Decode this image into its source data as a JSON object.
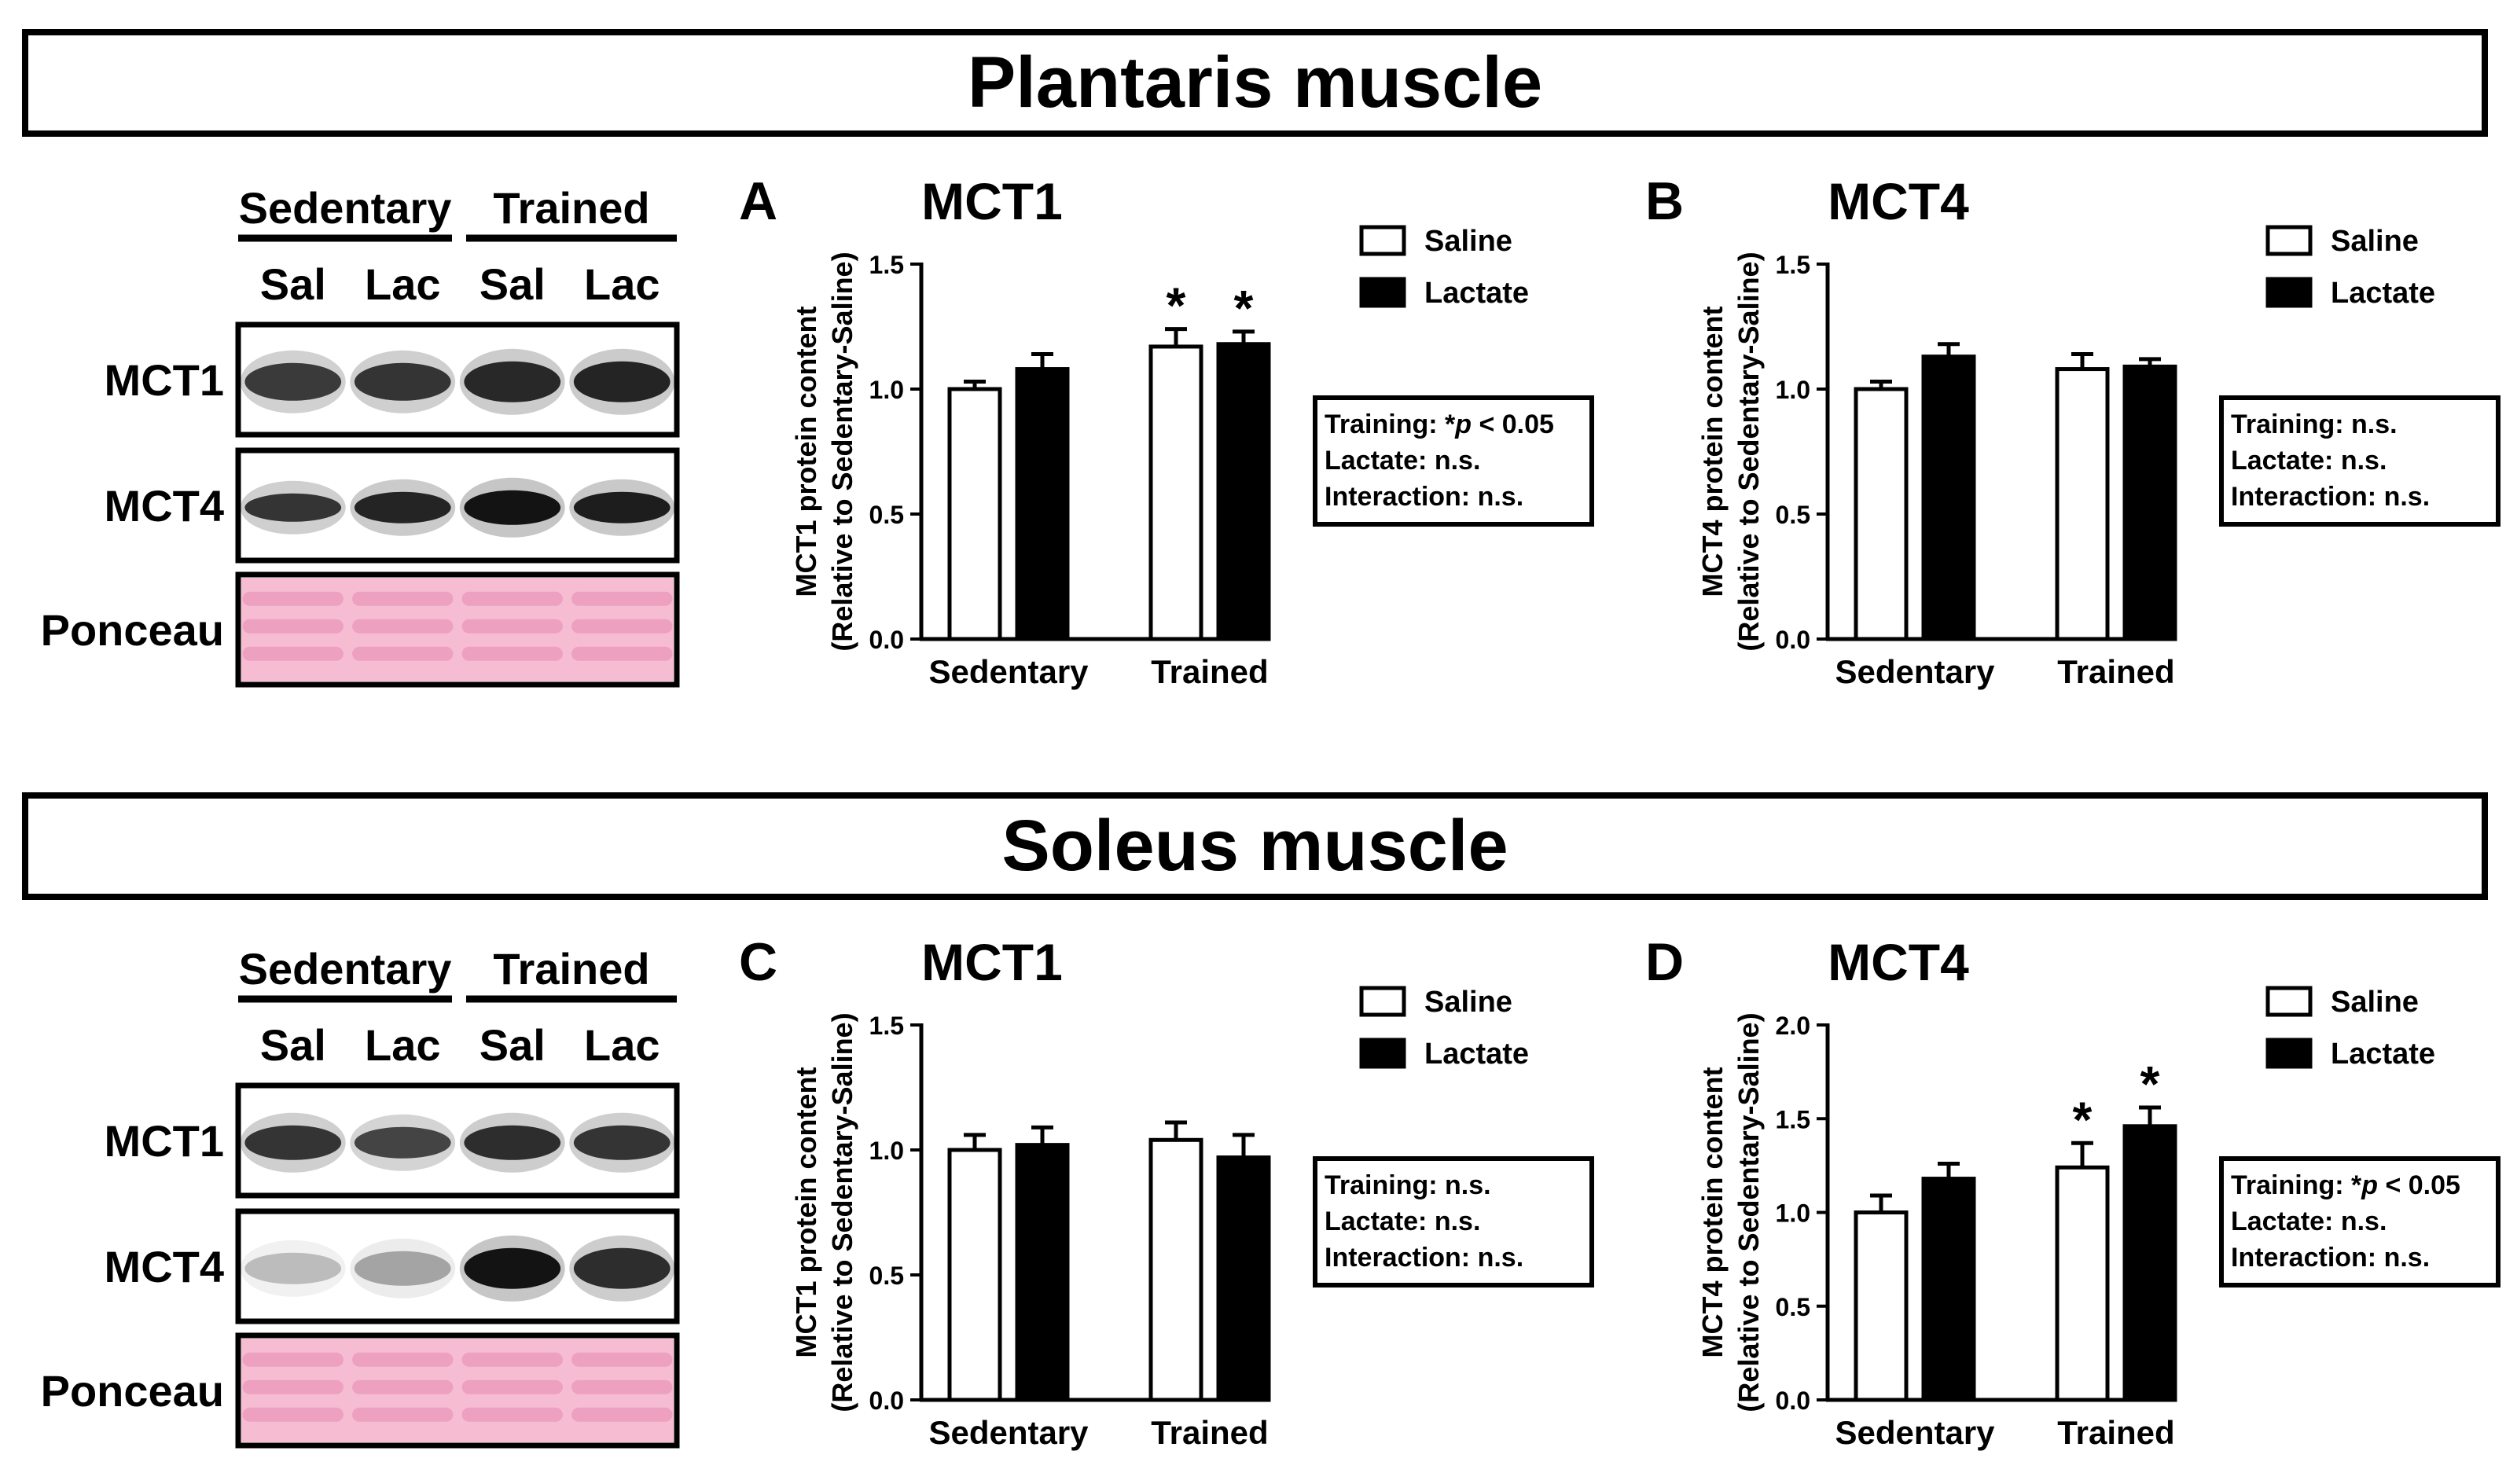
{
  "sections": [
    {
      "title": "Plantaris muscle",
      "blot": {
        "groups": [
          "Sedentary",
          "Trained"
        ],
        "lanes": [
          "Sal",
          "Lac",
          "Sal",
          "Lac"
        ],
        "rows": [
          "MCT1",
          "MCT4",
          "Ponceau"
        ]
      },
      "panels": [
        {
          "letter": "A",
          "title": "MCT1",
          "ylabel_line1": "MCT1 protein content",
          "ylabel_line2": "(Relative to Sedentary-Saline)",
          "ylim": [
            0,
            1.5
          ],
          "yticks": [
            0.0,
            0.5,
            1.0,
            1.5
          ],
          "ytick_labels": [
            "0.0",
            "0.5",
            "1.0",
            "1.5"
          ],
          "categories": [
            "Sedentary",
            "Trained"
          ],
          "series": [
            {
              "name": "Saline",
              "values": [
                1.0,
                1.17
              ],
              "errors": [
                0.03,
                0.07
              ],
              "sig": [
                "",
                "*"
              ]
            },
            {
              "name": "Lactate",
              "values": [
                1.08,
                1.18
              ],
              "errors": [
                0.06,
                0.05
              ],
              "sig": [
                "",
                "*"
              ]
            }
          ],
          "stats": {
            "training": "Training: *p < 0.05",
            "lactate": "Lactate: n.s.",
            "interaction": "Interaction: n.s."
          }
        },
        {
          "letter": "B",
          "title": "MCT4",
          "ylabel_line1": "MCT4 protein content",
          "ylabel_line2": "(Relative to Sedentary-Saline)",
          "ylim": [
            0,
            1.5
          ],
          "yticks": [
            0.0,
            0.5,
            1.0,
            1.5
          ],
          "ytick_labels": [
            "0.0",
            "0.5",
            "1.0",
            "1.5"
          ],
          "categories": [
            "Sedentary",
            "Trained"
          ],
          "series": [
            {
              "name": "Saline",
              "values": [
                1.0,
                1.08
              ],
              "errors": [
                0.03,
                0.06
              ],
              "sig": [
                "",
                ""
              ]
            },
            {
              "name": "Lactate",
              "values": [
                1.13,
                1.09
              ],
              "errors": [
                0.05,
                0.03
              ],
              "sig": [
                "",
                ""
              ]
            }
          ],
          "stats": {
            "training": "Training: n.s.",
            "lactate": "Lactate: n.s.",
            "interaction": "Interaction: n.s."
          }
        }
      ]
    },
    {
      "title": "Soleus muscle",
      "blot": {
        "groups": [
          "Sedentary",
          "Trained"
        ],
        "lanes": [
          "Sal",
          "Lac",
          "Sal",
          "Lac"
        ],
        "rows": [
          "MCT1",
          "MCT4",
          "Ponceau"
        ]
      },
      "panels": [
        {
          "letter": "C",
          "title": "MCT1",
          "ylabel_line1": "MCT1 protein content",
          "ylabel_line2": "(Relative to Sedentary-Saline)",
          "ylim": [
            0,
            1.5
          ],
          "yticks": [
            0.0,
            0.5,
            1.0,
            1.5
          ],
          "ytick_labels": [
            "0.0",
            "0.5",
            "1.0",
            "1.5"
          ],
          "categories": [
            "Sedentary",
            "Trained"
          ],
          "series": [
            {
              "name": "Saline",
              "values": [
                1.0,
                1.04
              ],
              "errors": [
                0.06,
                0.07
              ],
              "sig": [
                "",
                ""
              ]
            },
            {
              "name": "Lactate",
              "values": [
                1.02,
                0.97
              ],
              "errors": [
                0.07,
                0.09
              ],
              "sig": [
                "",
                ""
              ]
            }
          ],
          "stats": {
            "training": "Training: n.s.",
            "lactate": "Lactate: n.s.",
            "interaction": "Interaction: n.s."
          }
        },
        {
          "letter": "D",
          "title": "MCT4",
          "ylabel_line1": "MCT4 protein content",
          "ylabel_line2": "(Relative to Sedentary-Saline)",
          "ylim": [
            0,
            2.0
          ],
          "yticks": [
            0.0,
            0.5,
            1.0,
            1.5,
            2.0
          ],
          "ytick_labels": [
            "0.0",
            "0.5",
            "1.0",
            "1.5",
            "2.0"
          ],
          "categories": [
            "Sedentary",
            "Trained"
          ],
          "series": [
            {
              "name": "Saline",
              "values": [
                1.0,
                1.24
              ],
              "errors": [
                0.09,
                0.13
              ],
              "sig": [
                "",
                "*"
              ]
            },
            {
              "name": "Lactate",
              "values": [
                1.18,
                1.46
              ],
              "errors": [
                0.08,
                0.1
              ],
              "sig": [
                "",
                "*"
              ]
            }
          ],
          "stats": {
            "training": "Training: *p < 0.05",
            "lactate": "Lactate: n.s.",
            "interaction": "Interaction: n.s."
          }
        }
      ]
    }
  ],
  "colors": {
    "saline": "#ffffff",
    "lactate": "#000000",
    "stroke": "#000000",
    "ponceau": "#f6bdd2",
    "ponceau_band": "#ea94b8"
  },
  "chart_data": [
    {
      "type": "bar",
      "title": "MCT1",
      "panel": "A",
      "muscle": "Plantaris muscle",
      "categories": [
        "Sedentary",
        "Trained"
      ],
      "ylabel": "MCT1 protein content (Relative to Sedentary-Saline)",
      "ylim": [
        0,
        1.5
      ],
      "series": [
        {
          "name": "Saline",
          "values": [
            1.0,
            1.17
          ]
        },
        {
          "name": "Lactate",
          "values": [
            1.08,
            1.18
          ]
        }
      ]
    },
    {
      "type": "bar",
      "title": "MCT4",
      "panel": "B",
      "muscle": "Plantaris muscle",
      "categories": [
        "Sedentary",
        "Trained"
      ],
      "ylabel": "MCT4 protein content (Relative to Sedentary-Saline)",
      "ylim": [
        0,
        1.5
      ],
      "series": [
        {
          "name": "Saline",
          "values": [
            1.0,
            1.08
          ]
        },
        {
          "name": "Lactate",
          "values": [
            1.13,
            1.09
          ]
        }
      ]
    },
    {
      "type": "bar",
      "title": "MCT1",
      "panel": "C",
      "muscle": "Soleus muscle",
      "categories": [
        "Sedentary",
        "Trained"
      ],
      "ylabel": "MCT1 protein content (Relative to Sedentary-Saline)",
      "ylim": [
        0,
        1.5
      ],
      "series": [
        {
          "name": "Saline",
          "values": [
            1.0,
            1.04
          ]
        },
        {
          "name": "Lactate",
          "values": [
            1.02,
            0.97
          ]
        }
      ]
    },
    {
      "type": "bar",
      "title": "MCT4",
      "panel": "D",
      "muscle": "Soleus muscle",
      "categories": [
        "Sedentary",
        "Trained"
      ],
      "ylabel": "MCT4 protein content (Relative to Sedentary-Saline)",
      "ylim": [
        0,
        2.0
      ],
      "series": [
        {
          "name": "Saline",
          "values": [
            1.0,
            1.24
          ]
        },
        {
          "name": "Lactate",
          "values": [
            1.18,
            1.46
          ]
        }
      ]
    }
  ]
}
